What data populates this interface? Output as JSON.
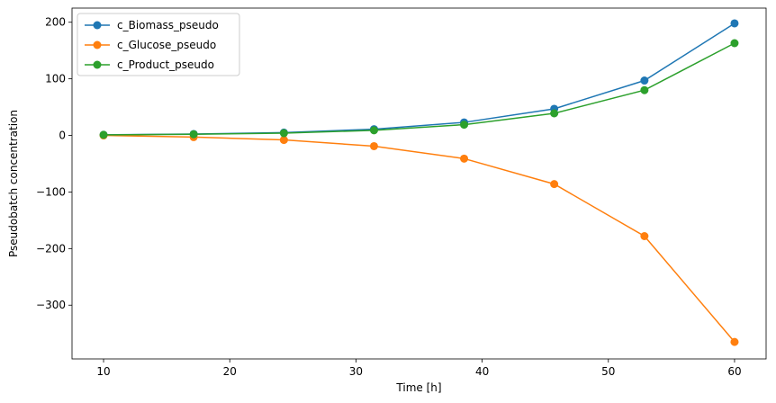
{
  "chart_data": {
    "type": "line",
    "title": "",
    "xlabel": "Time [h]",
    "ylabel": "Pseudobatch concentration",
    "xlim": [
      7.5,
      62.5
    ],
    "ylim": [
      -395,
      225
    ],
    "xticks": [
      10,
      20,
      30,
      40,
      50,
      60
    ],
    "yticks": [
      -300,
      -200,
      -100,
      0,
      100,
      200
    ],
    "xtick_labels": [
      "10",
      "20",
      "30",
      "40",
      "50",
      "60"
    ],
    "ytick_labels": [
      "−300",
      "−200",
      "−100",
      "0",
      "100",
      "200"
    ],
    "grid": false,
    "legend_position": "upper left",
    "x": [
      10,
      17.14,
      24.29,
      31.43,
      38.57,
      45.71,
      52.86,
      60
    ],
    "series": [
      {
        "name": "c_Biomass_pseudo",
        "color": "#1f77b4",
        "values": [
          1,
          2.5,
          5,
          11,
          23,
          47,
          97,
          198
        ]
      },
      {
        "name": "c_Glucose_pseudo",
        "color": "#ff7f0e",
        "values": [
          0,
          -3,
          -8,
          -19,
          -41,
          -86,
          -178,
          -365
        ]
      },
      {
        "name": "c_Product_pseudo",
        "color": "#2ca02c",
        "values": [
          1,
          2,
          4,
          9,
          19,
          39,
          80,
          163
        ]
      }
    ]
  }
}
